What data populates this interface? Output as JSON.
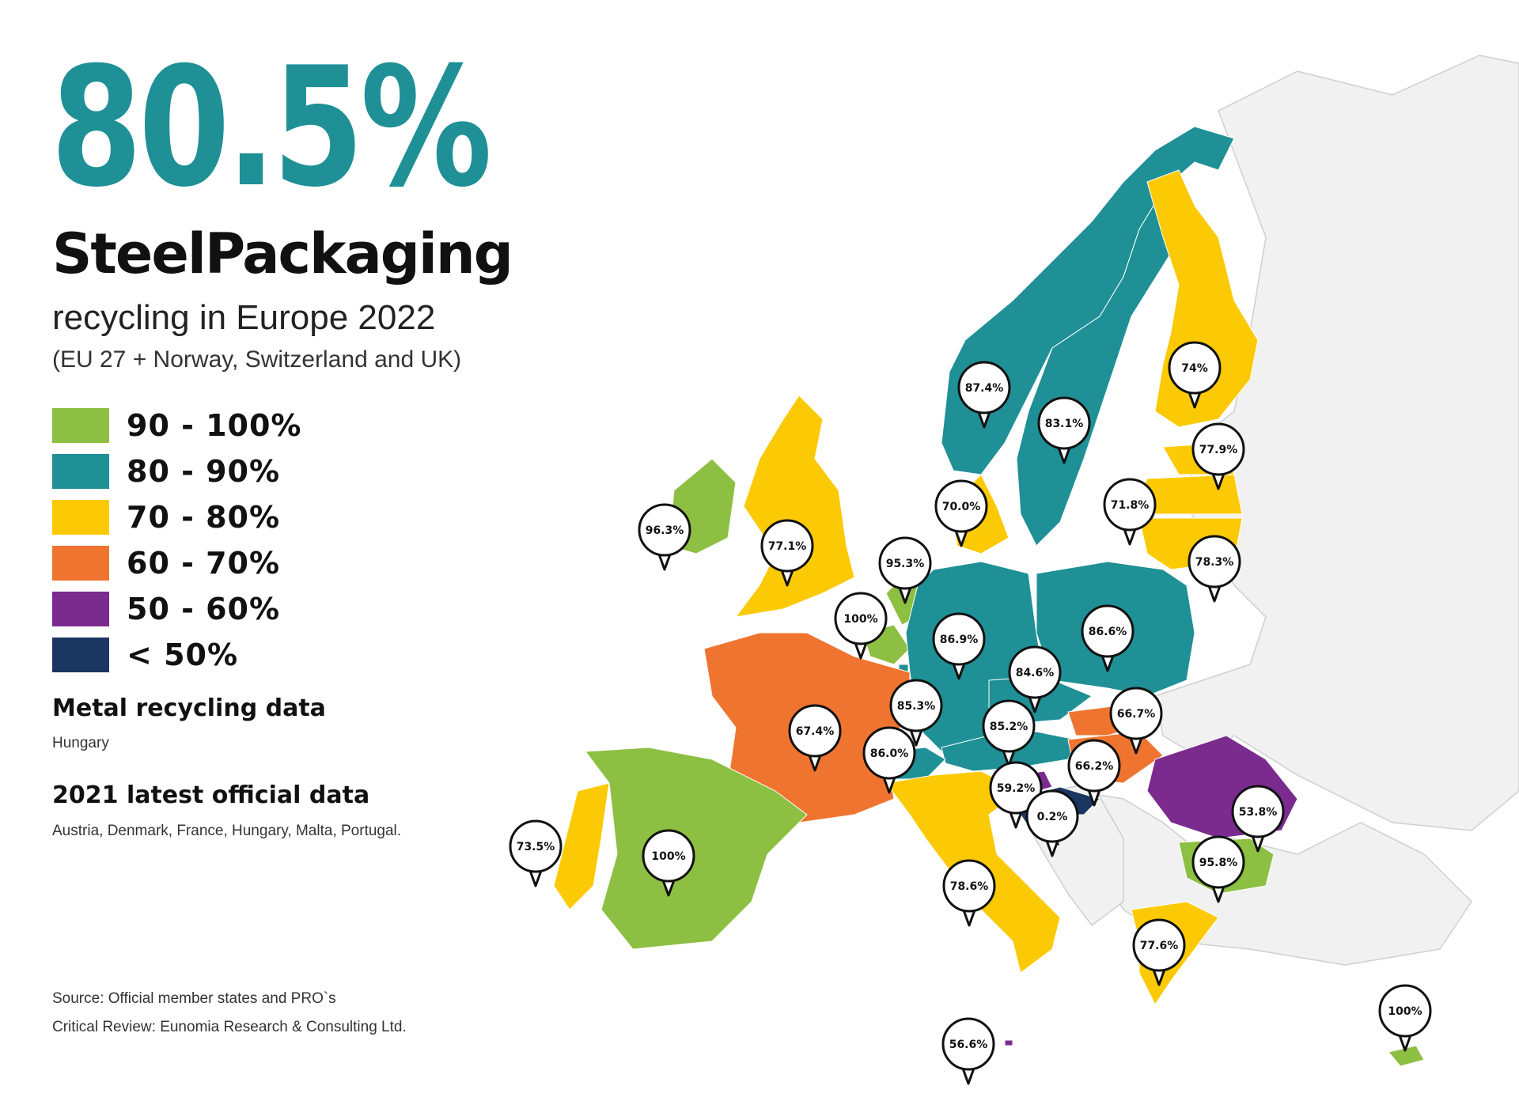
{
  "headline": "80.5%",
  "title": "SteelPackaging",
  "subtitle": "recycling in Europe 2022",
  "scope": "(EU 27 + Norway, Switzerland and UK)",
  "legend": [
    {
      "label": "90 - 100%",
      "color": "#8dbf43"
    },
    {
      "label": "80 - 90%",
      "color": "#1f9096"
    },
    {
      "label": "70 - 80%",
      "color": "#fcca04"
    },
    {
      "label": "60 - 70%",
      "color": "#ef7430"
    },
    {
      "label": "50 - 60%",
      "color": "#7b2a8e"
    },
    {
      "label": "< 50%",
      "color": "#1b3660"
    }
  ],
  "notes": {
    "metal_title": "Metal recycling data",
    "metal_text": "Hungary",
    "latest_title": "2021 latest official data",
    "latest_text": "Austria, Denmark, France, Hungary, Malta, Portugal."
  },
  "source": {
    "line1": "Source: Official member states and PRO`s",
    "line2": "Critical Review: Eunomia Research & Consulting Ltd."
  },
  "map": {
    "other_land_color": "#f1f1f1",
    "border_color": "#cfcfcf",
    "countries": [
      {
        "name": "Norway",
        "value": "87.4%",
        "band": 1
      },
      {
        "name": "Sweden",
        "value": "83.1%",
        "band": 1
      },
      {
        "name": "Finland",
        "value": "74%",
        "band": 2
      },
      {
        "name": "Estonia",
        "value": "77.9%",
        "band": 2
      },
      {
        "name": "Latvia",
        "value": "71.8%",
        "band": 2
      },
      {
        "name": "Lithuania",
        "value": "78.3%",
        "band": 2
      },
      {
        "name": "Denmark",
        "value": "70.0%",
        "band": 2
      },
      {
        "name": "Ireland",
        "value": "96.3%",
        "band": 0
      },
      {
        "name": "United Kingdom",
        "value": "77.1%",
        "band": 2
      },
      {
        "name": "Netherlands",
        "value": "95.3%",
        "band": 0
      },
      {
        "name": "Belgium",
        "value": "100%",
        "band": 0
      },
      {
        "name": "Germany",
        "value": "86.9%",
        "band": 1
      },
      {
        "name": "Poland",
        "value": "86.6%",
        "band": 1
      },
      {
        "name": "Czechia",
        "value": "84.6%",
        "band": 1
      },
      {
        "name": "Luxembourg",
        "value": "85.3%",
        "band": 1
      },
      {
        "name": "Austria",
        "value": "85.2%",
        "band": 1
      },
      {
        "name": "Slovakia",
        "value": "66.7%",
        "band": 3
      },
      {
        "name": "France",
        "value": "67.4%",
        "band": 3
      },
      {
        "name": "Switzerland",
        "value": "86.0%",
        "band": 1
      },
      {
        "name": "Slovenia",
        "value": "59.2%",
        "band": 4
      },
      {
        "name": "Hungary",
        "value": "66.2%",
        "band": 3
      },
      {
        "name": "Croatia",
        "value": "0.2%",
        "band": 5
      },
      {
        "name": "Romania",
        "value": "53.8%",
        "band": 4
      },
      {
        "name": "Bulgaria",
        "value": "95.8%",
        "band": 0
      },
      {
        "name": "Portugal",
        "value": "73.5%",
        "band": 2
      },
      {
        "name": "Spain",
        "value": "100%",
        "band": 0
      },
      {
        "name": "Italy",
        "value": "78.6%",
        "band": 2
      },
      {
        "name": "Greece",
        "value": "77.6%",
        "band": 2
      },
      {
        "name": "Malta",
        "value": "56.6%",
        "band": 4
      },
      {
        "name": "Cyprus",
        "value": "100%",
        "band": 0
      }
    ]
  }
}
